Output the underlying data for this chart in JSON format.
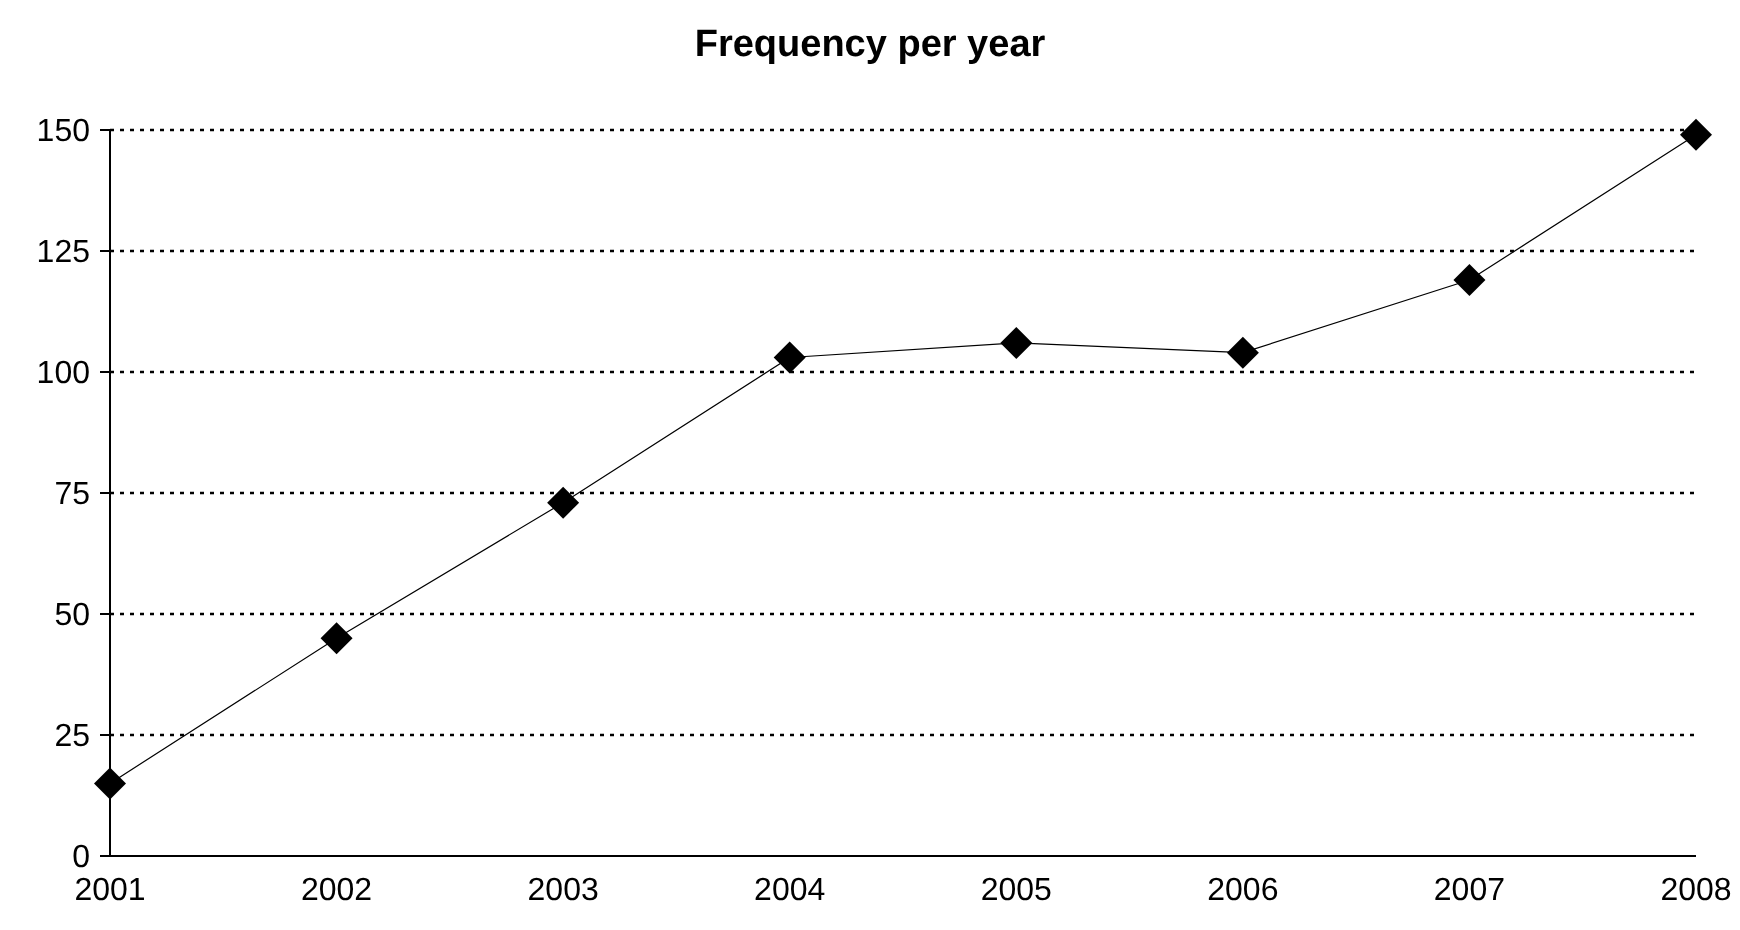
{
  "chart_data": {
    "type": "line",
    "title": "Frequency per year",
    "categories": [
      "2001",
      "2002",
      "2003",
      "2004",
      "2005",
      "2006",
      "2007",
      "2008"
    ],
    "series": [
      {
        "color": "#000000",
        "values": [
          15,
          45,
          73,
          103,
          106,
          104,
          119,
          149
        ]
      }
    ],
    "ylim": [
      0,
      150
    ],
    "yticks": [
      0,
      25,
      50,
      75,
      100,
      125,
      150
    ],
    "grid": "y",
    "marker": "diamond",
    "line_style": "solid"
  }
}
